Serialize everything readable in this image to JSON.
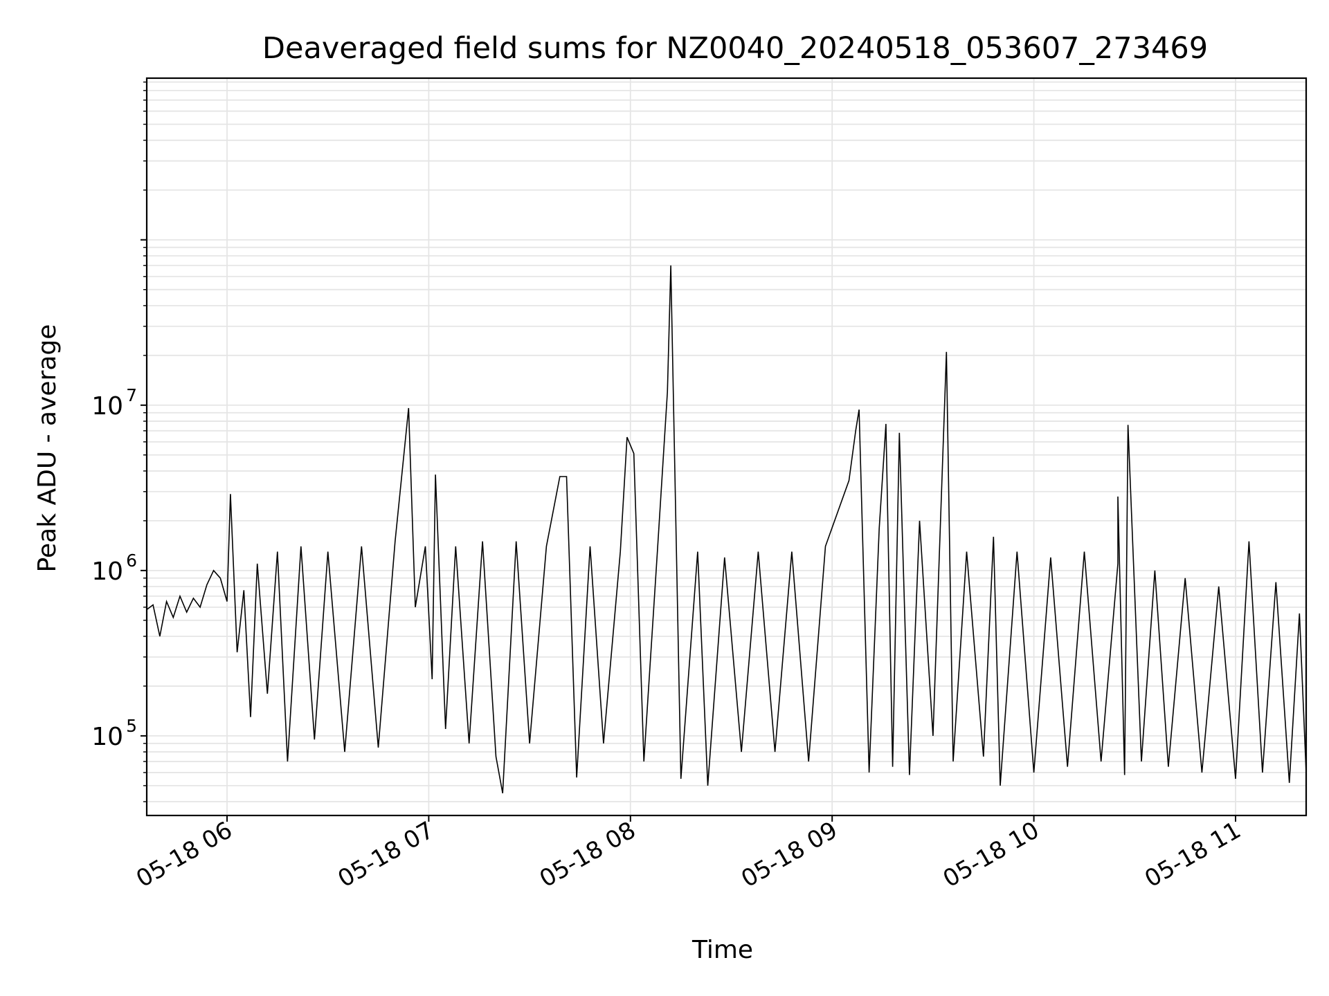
{
  "chart_data": {
    "type": "line",
    "title": "Deaveraged field sums for NZ0040_20240518_053607_273469",
    "xlabel": "Time",
    "ylabel": "Peak ADU - average",
    "yscale": "log",
    "ylim": [
      33000,
      950000000
    ],
    "xlim": [
      "2024-05-18 05:36:07",
      "2024-05-18 11:21:00"
    ],
    "xticks": [
      {
        "label": "05-18 06",
        "time": "2024-05-18 06:00"
      },
      {
        "label": "05-18 07",
        "time": "2024-05-18 07:00"
      },
      {
        "label": "05-18 08",
        "time": "2024-05-18 08:00"
      },
      {
        "label": "05-18 09",
        "time": "2024-05-18 09:00"
      },
      {
        "label": "05-18 10",
        "time": "2024-05-18 10:00"
      },
      {
        "label": "05-18 11",
        "time": "2024-05-18 11:00"
      }
    ],
    "yticks": [
      {
        "base": "10",
        "exp": "5",
        "value": 100000
      },
      {
        "base": "10",
        "exp": "6",
        "value": 1000000
      },
      {
        "base": "10",
        "exp": "7",
        "value": 10000000
      }
    ],
    "grid": true,
    "line_color": "#000000",
    "grid_color": "#e5e5e5",
    "series": [
      {
        "points": [
          [
            "2024-05-18 05:36:07",
            580000
          ],
          [
            "2024-05-18 05:38",
            620000
          ],
          [
            "2024-05-18 05:40",
            400000
          ],
          [
            "2024-05-18 05:42",
            650000
          ],
          [
            "2024-05-18 05:44",
            520000
          ],
          [
            "2024-05-18 05:46",
            700000
          ],
          [
            "2024-05-18 05:48",
            560000
          ],
          [
            "2024-05-18 05:50",
            680000
          ],
          [
            "2024-05-18 05:52",
            600000
          ],
          [
            "2024-05-18 05:54",
            820000
          ],
          [
            "2024-05-18 05:56",
            1000000
          ],
          [
            "2024-05-18 05:58",
            900000
          ],
          [
            "2024-05-18 06:00",
            650000
          ],
          [
            "2024-05-18 06:01",
            2900000
          ],
          [
            "2024-05-18 06:03",
            320000
          ],
          [
            "2024-05-18 06:05",
            760000
          ],
          [
            "2024-05-18 06:07",
            130000
          ],
          [
            "2024-05-18 06:09",
            1100000
          ],
          [
            "2024-05-18 06:12",
            180000
          ],
          [
            "2024-05-18 06:15",
            1300000
          ],
          [
            "2024-05-18 06:18",
            70000
          ],
          [
            "2024-05-18 06:22",
            1400000
          ],
          [
            "2024-05-18 06:26",
            95000
          ],
          [
            "2024-05-18 06:30",
            1300000
          ],
          [
            "2024-05-18 06:35",
            80000
          ],
          [
            "2024-05-18 06:40",
            1400000
          ],
          [
            "2024-05-18 06:45",
            85000
          ],
          [
            "2024-05-18 06:50",
            1500000
          ],
          [
            "2024-05-18 06:54",
            9600000
          ],
          [
            "2024-05-18 06:56",
            600000
          ],
          [
            "2024-05-18 06:59",
            1400000
          ],
          [
            "2024-05-18 07:01",
            220000
          ],
          [
            "2024-05-18 07:02",
            3800000
          ],
          [
            "2024-05-18 07:05",
            110000
          ],
          [
            "2024-05-18 07:08",
            1400000
          ],
          [
            "2024-05-18 07:12",
            90000
          ],
          [
            "2024-05-18 07:16",
            1500000
          ],
          [
            "2024-05-18 07:20",
            75000
          ],
          [
            "2024-05-18 07:22",
            45000
          ],
          [
            "2024-05-18 07:26",
            1500000
          ],
          [
            "2024-05-18 07:30",
            90000
          ],
          [
            "2024-05-18 07:35",
            1400000
          ],
          [
            "2024-05-18 07:39",
            3700000
          ],
          [
            "2024-05-18 07:41",
            3700000
          ],
          [
            "2024-05-18 07:44",
            56000
          ],
          [
            "2024-05-18 07:48",
            1400000
          ],
          [
            "2024-05-18 07:52",
            90000
          ],
          [
            "2024-05-18 07:57",
            1300000
          ],
          [
            "2024-05-18 07:59",
            6400000
          ],
          [
            "2024-05-18 08:01",
            5100000
          ],
          [
            "2024-05-18 08:04",
            70000
          ],
          [
            "2024-05-18 08:08",
            1300000
          ],
          [
            "2024-05-18 08:11",
            12000000
          ],
          [
            "2024-05-18 08:12",
            70000000
          ],
          [
            "2024-05-18 08:15",
            55000
          ],
          [
            "2024-05-18 08:20",
            1300000
          ],
          [
            "2024-05-18 08:23",
            50000
          ],
          [
            "2024-05-18 08:28",
            1200000
          ],
          [
            "2024-05-18 08:33",
            80000
          ],
          [
            "2024-05-18 08:38",
            1300000
          ],
          [
            "2024-05-18 08:43",
            80000
          ],
          [
            "2024-05-18 08:48",
            1300000
          ],
          [
            "2024-05-18 08:53",
            70000
          ],
          [
            "2024-05-18 08:58",
            1400000
          ],
          [
            "2024-05-18 09:05",
            3500000
          ],
          [
            "2024-05-18 09:07",
            7000000
          ],
          [
            "2024-05-18 09:08",
            9400000
          ],
          [
            "2024-05-18 09:11",
            60000
          ],
          [
            "2024-05-18 09:14",
            1800000
          ],
          [
            "2024-05-18 09:16",
            7700000
          ],
          [
            "2024-05-18 09:18",
            65000
          ],
          [
            "2024-05-18 09:20",
            6800000
          ],
          [
            "2024-05-18 09:23",
            58000
          ],
          [
            "2024-05-18 09:26",
            2000000
          ],
          [
            "2024-05-18 09:30",
            100000
          ],
          [
            "2024-05-18 09:34",
            21000000
          ],
          [
            "2024-05-18 09:36",
            70000
          ],
          [
            "2024-05-18 09:40",
            1300000
          ],
          [
            "2024-05-18 09:45",
            75000
          ],
          [
            "2024-05-18 09:48",
            1600000
          ],
          [
            "2024-05-18 09:50",
            50000
          ],
          [
            "2024-05-18 09:55",
            1300000
          ],
          [
            "2024-05-18 10:00",
            60000
          ],
          [
            "2024-05-18 10:05",
            1200000
          ],
          [
            "2024-05-18 10:10",
            65000
          ],
          [
            "2024-05-18 10:15",
            1300000
          ],
          [
            "2024-05-18 10:20",
            70000
          ],
          [
            "2024-05-18 10:25",
            1100000
          ],
          [
            "2024-05-18 10:25",
            2800000
          ],
          [
            "2024-05-18 10:27",
            58000
          ],
          [
            "2024-05-18 10:28",
            7600000
          ],
          [
            "2024-05-18 10:32",
            70000
          ],
          [
            "2024-05-18 10:36",
            1000000
          ],
          [
            "2024-05-18 10:40",
            65000
          ],
          [
            "2024-05-18 10:45",
            900000
          ],
          [
            "2024-05-18 10:50",
            60000
          ],
          [
            "2024-05-18 10:55",
            800000
          ],
          [
            "2024-05-18 11:00",
            55000
          ],
          [
            "2024-05-18 11:04",
            1500000
          ],
          [
            "2024-05-18 11:08",
            60000
          ],
          [
            "2024-05-18 11:12",
            850000
          ],
          [
            "2024-05-18 11:16",
            52000
          ],
          [
            "2024-05-18 11:19",
            550000
          ],
          [
            "2024-05-18 11:21",
            60000
          ]
        ]
      }
    ]
  }
}
